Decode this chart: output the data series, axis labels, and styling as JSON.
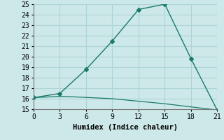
{
  "xlabel": "Humidex (Indice chaleur)",
  "background_color": "#cde8e8",
  "grid_color": "#aed4d4",
  "line_color": "#1a7a6a",
  "line1_x": [
    0,
    3,
    6,
    9,
    12,
    15,
    18,
    21
  ],
  "line1_y": [
    16.1,
    16.5,
    18.8,
    21.5,
    24.5,
    25.0,
    19.8,
    14.9
  ],
  "line2_x": [
    0,
    0.5,
    1,
    1.5,
    2,
    2.5,
    3,
    3.5,
    4,
    4.5,
    5,
    5.5,
    6,
    6.5,
    7,
    7.5,
    8,
    8.5,
    9,
    9.5,
    10,
    10.5,
    11,
    11.5,
    12,
    12.5,
    13,
    13.5,
    14,
    14.5,
    15,
    15.5,
    16,
    16.5,
    17,
    17.5,
    18,
    18.5,
    19,
    19.5,
    20,
    20.5,
    21
  ],
  "line2_y": [
    16.1,
    16.12,
    16.14,
    16.16,
    16.18,
    16.2,
    16.22,
    16.21,
    16.2,
    16.18,
    16.16,
    16.14,
    16.12,
    16.1,
    16.08,
    16.06,
    16.04,
    16.02,
    16.0,
    15.96,
    15.92,
    15.88,
    15.84,
    15.8,
    15.76,
    15.72,
    15.68,
    15.64,
    15.6,
    15.56,
    15.52,
    15.47,
    15.42,
    15.37,
    15.32,
    15.27,
    15.22,
    15.17,
    15.12,
    15.07,
    15.02,
    14.97,
    14.9
  ],
  "ylim": [
    15,
    25
  ],
  "xlim": [
    0,
    21
  ],
  "yticks": [
    15,
    16,
    17,
    18,
    19,
    20,
    21,
    22,
    23,
    24,
    25
  ],
  "xticks": [
    0,
    3,
    6,
    9,
    12,
    15,
    18,
    21
  ],
  "marker": "D",
  "marker_size": 3,
  "tick_fontsize": 7,
  "xlabel_fontsize": 7.5
}
